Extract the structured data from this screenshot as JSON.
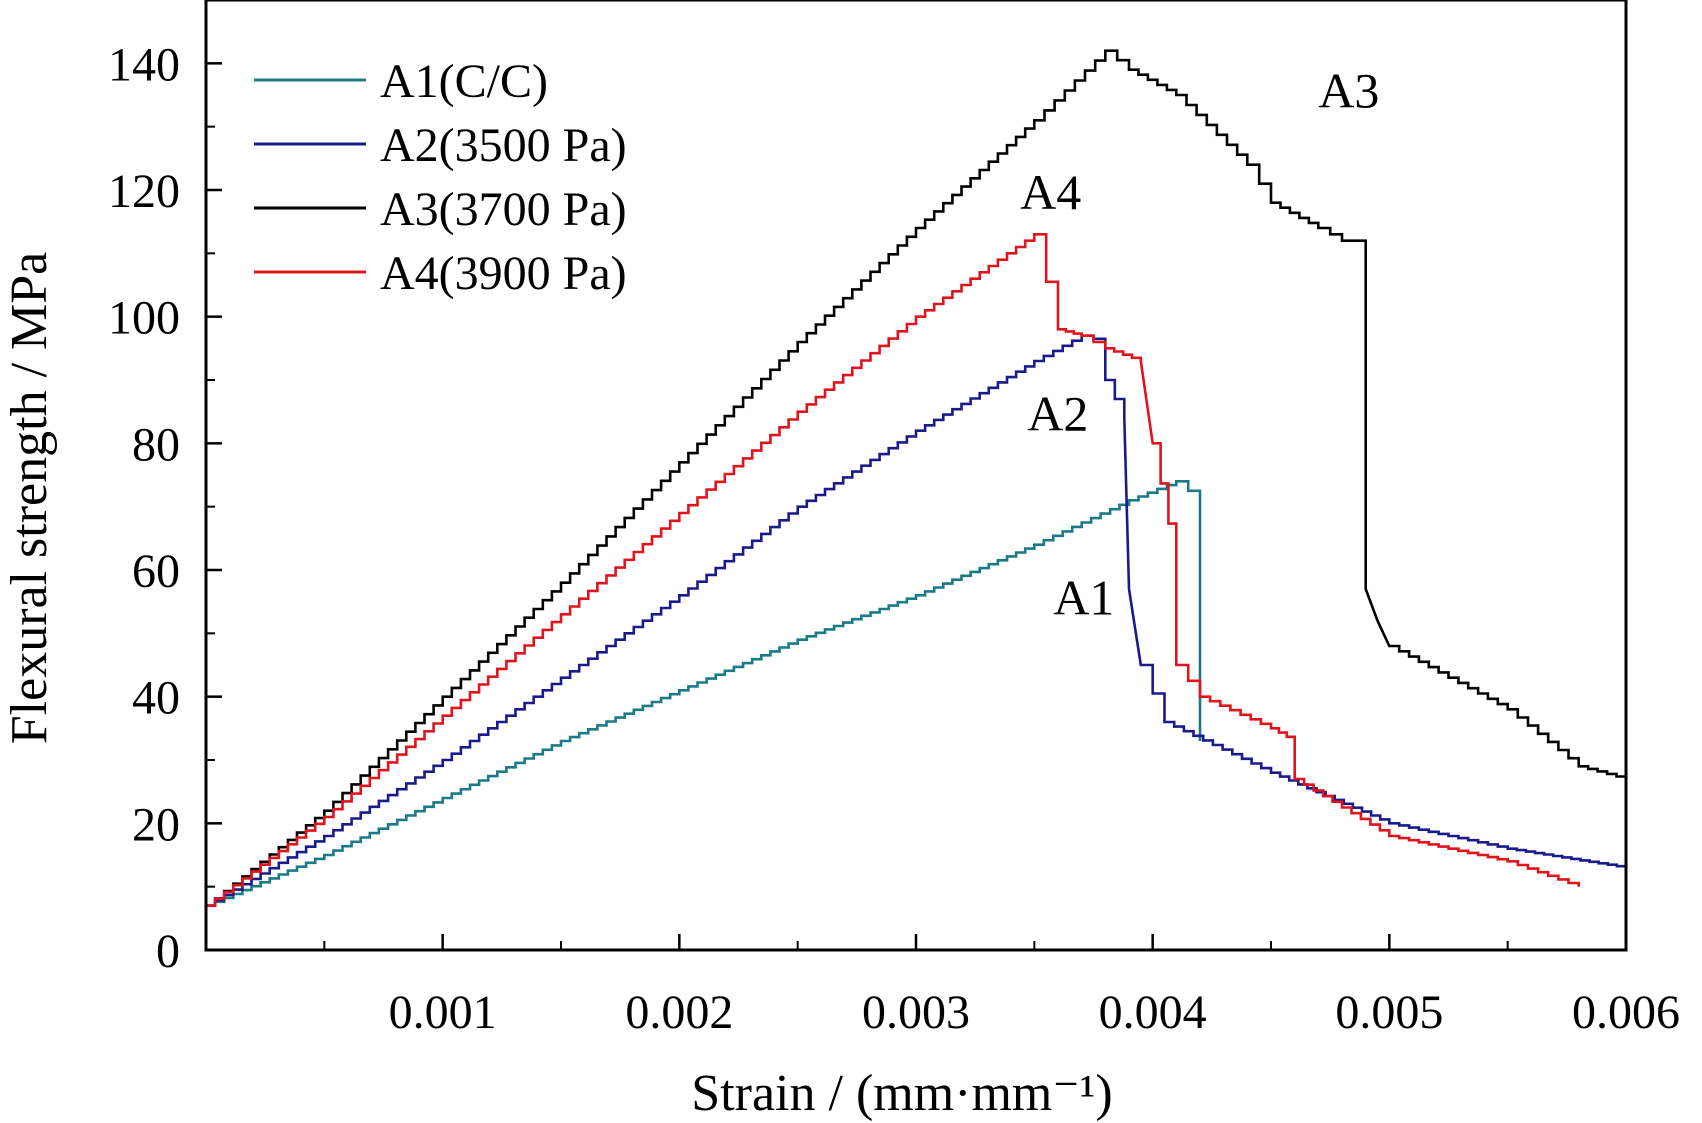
{
  "chart_data": {
    "type": "line",
    "xlabel": "Strain / (mm·mm⁻¹)",
    "ylabel": "Flexural strength / MPa",
    "xlim": [
      0,
      0.006
    ],
    "ylim": [
      0,
      150
    ],
    "xticks": [
      0.001,
      0.002,
      0.003,
      0.004,
      0.005,
      0.006
    ],
    "xtick_labels": [
      "0.001",
      "0.002",
      "0.003",
      "0.004",
      "0.005",
      "0.006"
    ],
    "yticks": [
      0,
      20,
      40,
      60,
      80,
      100,
      120,
      140
    ],
    "ytick_labels": [
      "0",
      "20",
      "40",
      "60",
      "80",
      "100",
      "120",
      "140"
    ],
    "grid": false,
    "legend_position": "top-left",
    "series": [
      {
        "name": "A1(C/C)",
        "color": "#1a7a86",
        "x": [
          0.0,
          0.0005,
          0.001,
          0.0015,
          0.002,
          0.0025,
          0.003,
          0.0035,
          0.0039,
          0.0041,
          0.0042,
          0.0042
        ],
        "y": [
          7,
          15,
          24,
          33,
          41,
          49,
          56,
          64,
          71,
          74,
          71,
          33
        ]
      },
      {
        "name": "A2(3500 Pa)",
        "color": "#1a1a8c",
        "x": [
          0.0,
          0.0005,
          0.001,
          0.0015,
          0.002,
          0.0025,
          0.003,
          0.0035,
          0.0037,
          0.0038,
          0.0038,
          0.00388,
          0.0039,
          0.00395,
          0.00405,
          0.0045,
          0.005,
          0.0055,
          0.006
        ],
        "y": [
          7,
          18,
          30,
          43,
          56,
          70,
          82,
          93,
          97,
          96,
          90,
          84,
          57,
          45,
          36,
          28,
          20,
          16,
          13
        ]
      },
      {
        "name": "A3(3700 Pa)",
        "color": "#000000",
        "x": [
          0.0,
          0.0005,
          0.001,
          0.0015,
          0.002,
          0.0025,
          0.003,
          0.0035,
          0.0038,
          0.0039,
          0.0041,
          0.0044,
          0.0045,
          0.0047,
          0.0048,
          0.0049,
          0.0049,
          0.00495,
          0.005,
          0.0055,
          0.0058,
          0.006
        ],
        "y": [
          7,
          22,
          40,
          58,
          77,
          96,
          114,
          131,
          142,
          139,
          135,
          124,
          118,
          114,
          112,
          112,
          57,
          52,
          48,
          38,
          29,
          27
        ]
      },
      {
        "name": "A4(3900 Pa)",
        "color": "#e0141c",
        "x": [
          0.0,
          0.0005,
          0.001,
          0.0015,
          0.002,
          0.0025,
          0.003,
          0.0035,
          0.0036,
          0.0037,
          0.0038,
          0.00395,
          0.004,
          0.0041,
          0.0041,
          0.0042,
          0.0045,
          0.0046,
          0.0046,
          0.005,
          0.0055,
          0.0058
        ],
        "y": [
          7,
          21,
          37,
          53,
          69,
          85,
          100,
          113,
          98,
          97,
          95,
          93,
          80,
          61,
          45,
          40,
          35,
          33,
          27,
          18,
          14,
          10
        ]
      }
    ],
    "annotations": [
      {
        "text": "A3",
        "x": 0.0047,
        "y": 133
      },
      {
        "text": "A4",
        "x": 0.00344,
        "y": 117
      },
      {
        "text": "A2",
        "x": 0.00347,
        "y": 82
      },
      {
        "text": "A1",
        "x": 0.00358,
        "y": 53
      }
    ]
  }
}
